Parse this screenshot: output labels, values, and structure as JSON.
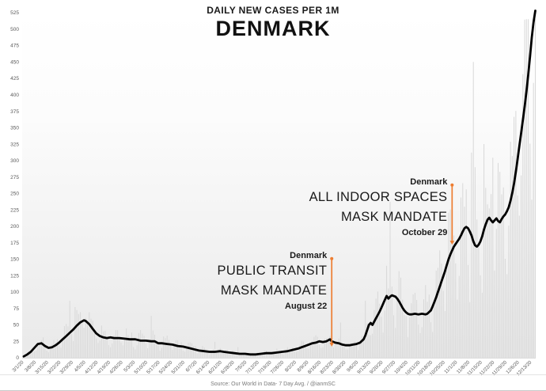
{
  "header": {
    "subtitle": "DAILY NEW CASES PER 1M",
    "title": "DENMARK"
  },
  "footer": {
    "source": "Source: Our World in Data- 7 Day Avg. / @ianmSC"
  },
  "colors": {
    "accent_orange": "#ED7D31",
    "avg_line": "#000000",
    "daily_bars": "#d8d8d8",
    "axis_text": "#595959"
  },
  "annotations": [
    {
      "country": "Denmark",
      "line1": "PUBLIC TRANSIT",
      "line2": "MASK MANDATE",
      "date": "August 22",
      "day": 174,
      "arrow_top_value": 152,
      "arrow_bottom_value": 17
    },
    {
      "country": "Denmark",
      "line1": "ALL INDOOR SPACES",
      "line2": "MASK MANDATE",
      "date": "October 29",
      "day": 242,
      "arrow_top_value": 264,
      "arrow_bottom_value": 172
    }
  ],
  "chart_data": {
    "type": "line",
    "title": "DENMARK",
    "subtitle": "DAILY NEW CASES PER 1M",
    "ylabel": "",
    "xlabel": "",
    "ylim": [
      0,
      525
    ],
    "ytick_step": 25,
    "grid": false,
    "legend": "none",
    "start_date": "3/1/20",
    "x_tick_labels": [
      "3/1/20",
      "3/8/20",
      "3/15/20",
      "3/22/20",
      "3/29/20",
      "4/5/20",
      "4/12/20",
      "4/19/20",
      "4/26/20",
      "5/3/20",
      "5/10/20",
      "5/17/20",
      "5/24/20",
      "5/31/20",
      "6/7/20",
      "6/14/20",
      "6/21/20",
      "6/28/20",
      "7/5/20",
      "7/12/20",
      "7/19/20",
      "7/26/20",
      "8/2/20",
      "8/9/20",
      "8/16/20",
      "8/23/20",
      "8/30/20",
      "9/6/20",
      "9/13/20",
      "9/20/20",
      "9/27/20",
      "10/4/20",
      "10/11/20",
      "10/18/20",
      "10/25/20",
      "11/1/20",
      "11/8/20",
      "11/15/20",
      "11/22/20",
      "11/29/20",
      "12/6/20",
      "12/13/20"
    ],
    "series": [
      {
        "name": "7 Day Avg",
        "color": "#000000",
        "points_day_value": [
          [
            0,
            2
          ],
          [
            2,
            5
          ],
          [
            4,
            9
          ],
          [
            6,
            15
          ],
          [
            8,
            21
          ],
          [
            10,
            22
          ],
          [
            12,
            18
          ],
          [
            14,
            15
          ],
          [
            16,
            16
          ],
          [
            18,
            19
          ],
          [
            20,
            23
          ],
          [
            22,
            28
          ],
          [
            24,
            33
          ],
          [
            26,
            38
          ],
          [
            28,
            43
          ],
          [
            30,
            49
          ],
          [
            32,
            54
          ],
          [
            34,
            57
          ],
          [
            35,
            56
          ],
          [
            37,
            51
          ],
          [
            39,
            44
          ],
          [
            41,
            37
          ],
          [
            43,
            33
          ],
          [
            45,
            31
          ],
          [
            47,
            30
          ],
          [
            49,
            31
          ],
          [
            51,
            30
          ],
          [
            54,
            30
          ],
          [
            57,
            29
          ],
          [
            60,
            28
          ],
          [
            63,
            28
          ],
          [
            66,
            26
          ],
          [
            69,
            26
          ],
          [
            72,
            25
          ],
          [
            74,
            25
          ],
          [
            76,
            22
          ],
          [
            78,
            22
          ],
          [
            81,
            21
          ],
          [
            84,
            20
          ],
          [
            87,
            18
          ],
          [
            90,
            17
          ],
          [
            93,
            15
          ],
          [
            96,
            13
          ],
          [
            99,
            11
          ],
          [
            102,
            10
          ],
          [
            105,
            9
          ],
          [
            108,
            9
          ],
          [
            111,
            10
          ],
          [
            113,
            9
          ],
          [
            116,
            8
          ],
          [
            119,
            7
          ],
          [
            122,
            6
          ],
          [
            125,
            6
          ],
          [
            128,
            5
          ],
          [
            131,
            5
          ],
          [
            134,
            6
          ],
          [
            137,
            7
          ],
          [
            140,
            7
          ],
          [
            143,
            8
          ],
          [
            146,
            9
          ],
          [
            149,
            10
          ],
          [
            152,
            12
          ],
          [
            155,
            14
          ],
          [
            158,
            17
          ],
          [
            161,
            20
          ],
          [
            163,
            22
          ],
          [
            165,
            23
          ],
          [
            167,
            25
          ],
          [
            169,
            24
          ],
          [
            171,
            25
          ],
          [
            173,
            28
          ],
          [
            174,
            25
          ],
          [
            176,
            23
          ],
          [
            178,
            22
          ],
          [
            180,
            20
          ],
          [
            182,
            19
          ],
          [
            184,
            19
          ],
          [
            186,
            20
          ],
          [
            188,
            21
          ],
          [
            190,
            23
          ],
          [
            192,
            28
          ],
          [
            193,
            34
          ],
          [
            194,
            42
          ],
          [
            195,
            50
          ],
          [
            196,
            53
          ],
          [
            197,
            50
          ],
          [
            198,
            55
          ],
          [
            199,
            60
          ],
          [
            200,
            65
          ],
          [
            201,
            70
          ],
          [
            202,
            76
          ],
          [
            203,
            82
          ],
          [
            204,
            88
          ],
          [
            205,
            94
          ],
          [
            206,
            90
          ],
          [
            207,
            93
          ],
          [
            208,
            95
          ],
          [
            209,
            94
          ],
          [
            210,
            93
          ],
          [
            211,
            90
          ],
          [
            212,
            86
          ],
          [
            213,
            81
          ],
          [
            214,
            76
          ],
          [
            215,
            72
          ],
          [
            216,
            69
          ],
          [
            217,
            67
          ],
          [
            218,
            66
          ],
          [
            219,
            66
          ],
          [
            221,
            67
          ],
          [
            223,
            66
          ],
          [
            225,
            67
          ],
          [
            227,
            66
          ],
          [
            228,
            67
          ],
          [
            230,
            72
          ],
          [
            231,
            78
          ],
          [
            232,
            85
          ],
          [
            233,
            92
          ],
          [
            234,
            100
          ],
          [
            235,
            108
          ],
          [
            236,
            116
          ],
          [
            237,
            124
          ],
          [
            238,
            132
          ],
          [
            239,
            141
          ],
          [
            240,
            150
          ],
          [
            241,
            157
          ],
          [
            242,
            163
          ],
          [
            243,
            169
          ],
          [
            244,
            173
          ],
          [
            245,
            177
          ],
          [
            246,
            181
          ],
          [
            247,
            186
          ],
          [
            248,
            192
          ],
          [
            249,
            197
          ],
          [
            250,
            199
          ],
          [
            251,
            197
          ],
          [
            252,
            192
          ],
          [
            253,
            186
          ],
          [
            254,
            177
          ],
          [
            255,
            171
          ],
          [
            256,
            169
          ],
          [
            257,
            172
          ],
          [
            258,
            177
          ],
          [
            259,
            185
          ],
          [
            260,
            195
          ],
          [
            261,
            203
          ],
          [
            262,
            210
          ],
          [
            263,
            213
          ],
          [
            264,
            209
          ],
          [
            265,
            206
          ],
          [
            266,
            209
          ],
          [
            267,
            212
          ],
          [
            268,
            208
          ],
          [
            269,
            206
          ],
          [
            270,
            211
          ],
          [
            271,
            215
          ],
          [
            272,
            218
          ],
          [
            273,
            223
          ],
          [
            274,
            229
          ],
          [
            275,
            239
          ],
          [
            276,
            251
          ],
          [
            277,
            265
          ],
          [
            278,
            283
          ],
          [
            279,
            302
          ],
          [
            280,
            322
          ],
          [
            281,
            342
          ],
          [
            282,
            362
          ],
          [
            283,
            383
          ],
          [
            284,
            405
          ],
          [
            285,
            430
          ],
          [
            286,
            458
          ],
          [
            287,
            487
          ],
          [
            288,
            510
          ],
          [
            289,
            528
          ]
        ]
      }
    ],
    "daily_bars": {
      "present": true,
      "color": "#d8d8d8",
      "description": "Unlabeled daily values drawn as thin light-gray vertical bars behind the 7-day average line"
    }
  }
}
